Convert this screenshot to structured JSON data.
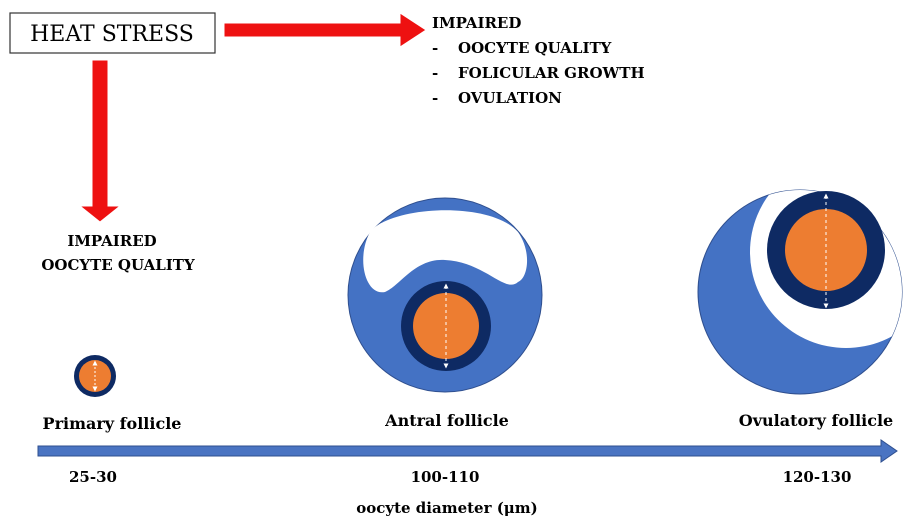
{
  "heat_stress": {
    "label": "HEAT STRESS"
  },
  "impaired_top": {
    "title": "IMPAIRED",
    "items": [
      "OOCYTE QUALITY",
      "FOLICULAR GROWTH",
      "OVULATION"
    ],
    "bullet": "-"
  },
  "impaired_left": {
    "line1": "IMPAIRED",
    "line2": "OOCYTE QUALITY"
  },
  "follicles": [
    {
      "label": "Primary follicle",
      "diameter": "25-30"
    },
    {
      "label": "Antral follicle",
      "diameter": "100-110"
    },
    {
      "label": "Ovulatory follicle",
      "diameter": "120-130"
    }
  ],
  "axis": {
    "label": "oocyte diameter (μm)"
  },
  "colors": {
    "arrow_red": "#ee1111",
    "follicle_blue": "#4472c4",
    "zona_navy": "#0e2a63",
    "oocyte_orange": "#ed7d31",
    "axis_blue": "#4a74c2"
  }
}
